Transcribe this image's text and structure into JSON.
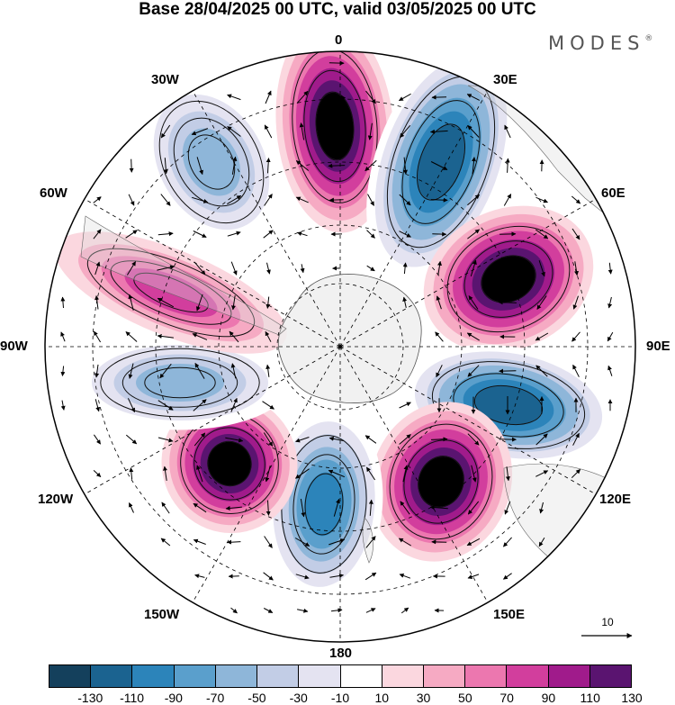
{
  "header": {
    "title": "Base 28/04/2025 00 UTC, valid 03/05/2025 00 UTC",
    "brand": "MODES",
    "brand_mark": "®"
  },
  "map": {
    "projection": "south polar stereographic",
    "longitude_labels": [
      "0",
      "30E",
      "60E",
      "90E",
      "120E",
      "150E",
      "180",
      "150W",
      "120W",
      "90W",
      "60W",
      "30W"
    ],
    "anomaly_centers": [
      {
        "type": "positive",
        "peak": 130
      },
      {
        "type": "negative",
        "peak": -130
      },
      {
        "type": "positive",
        "peak": 130
      },
      {
        "type": "negative",
        "peak": -130
      },
      {
        "type": "positive",
        "peak": 130
      },
      {
        "type": "negative",
        "peak": -110
      },
      {
        "type": "positive",
        "peak": 130
      },
      {
        "type": "negative",
        "peak": -70
      },
      {
        "type": "positive",
        "peak": 70
      },
      {
        "type": "negative",
        "peak": -70
      }
    ],
    "reference_vector": "10"
  },
  "colorbar": {
    "tick_labels": [
      "-130",
      "-110",
      "-90",
      "-70",
      "-50",
      "-30",
      "-10",
      "10",
      "30",
      "50",
      "70",
      "90",
      "110",
      "130"
    ],
    "colors": [
      "#14405c",
      "#1b6390",
      "#2c84ba",
      "#5a9fcc",
      "#8eb6d9",
      "#c2cde6",
      "#e4e3f1",
      "#ffffff",
      "#fbd7df",
      "#f6aac3",
      "#ec77af",
      "#d23e9d",
      "#a01b8b",
      "#5a1470"
    ]
  }
}
